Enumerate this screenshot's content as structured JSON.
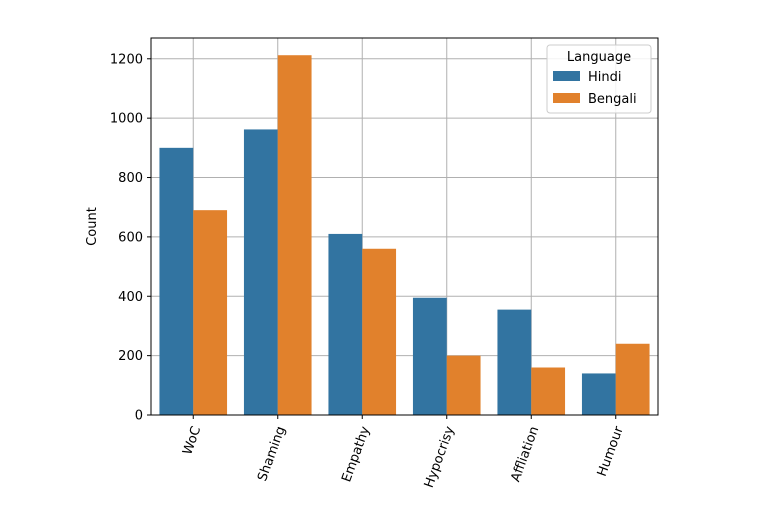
{
  "chart_data": {
    "type": "bar",
    "title": "",
    "xlabel": "",
    "ylabel": "Count",
    "ylim": [
      0,
      1270
    ],
    "yticks": [
      0,
      200,
      400,
      600,
      800,
      1000,
      1200
    ],
    "categories": [
      "WoC",
      "Shaming",
      "Empathy",
      "Hypocrisy",
      "Affliation",
      "Humour"
    ],
    "series": [
      {
        "name": "Hindi",
        "color": "#3274a1",
        "values": [
          900,
          962,
          610,
          395,
          355,
          140
        ]
      },
      {
        "name": "Bengali",
        "color": "#e1812c",
        "values": [
          690,
          1212,
          560,
          200,
          160,
          240
        ]
      }
    ],
    "legend": {
      "title": "Language",
      "position": "top-right"
    },
    "grid": true,
    "x_tick_rotation": -70
  }
}
